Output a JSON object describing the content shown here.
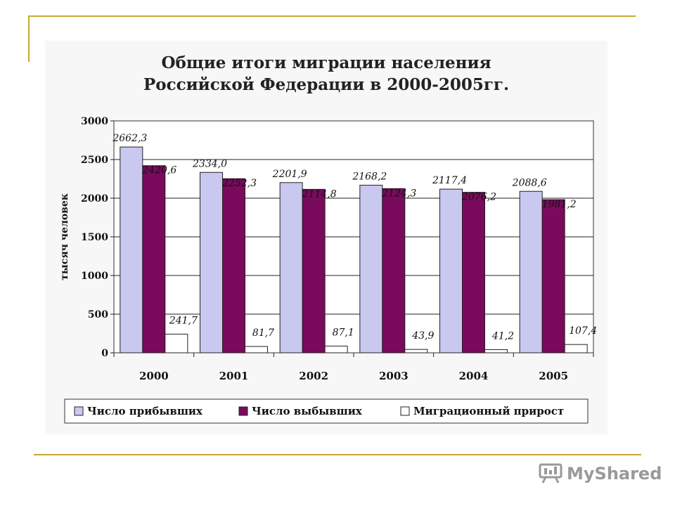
{
  "slide": {
    "title_line1": "Общие итоги миграции населения",
    "title_line2": "Российской Федерации в 2000-2005гг.",
    "watermark": "MyShared"
  },
  "chart_data": {
    "type": "bar",
    "title": "Общие итоги миграции населения Российской Федерации в 2000-2005гг.",
    "ylabel": "тысяч человек",
    "xlabel": "",
    "ylim": [
      0,
      3000
    ],
    "yticks": [
      "0",
      "500",
      "1000",
      "1500",
      "2000",
      "2500",
      "3000"
    ],
    "categories": [
      "2000",
      "2001",
      "2002",
      "2003",
      "2004",
      "2005"
    ],
    "grid": true,
    "legend_position": "bottom",
    "series": [
      {
        "name": "Число прибывших",
        "color": "#c8c8f0",
        "values": [
          2662.3,
          2334.0,
          2201.9,
          2168.2,
          2117.4,
          2088.6
        ],
        "labels": [
          "2662,3",
          "2334,0",
          "2201,9",
          "2168,2",
          "2117,4",
          "2088,6"
        ]
      },
      {
        "name": "Число выбывших",
        "color": "#7a0a5c",
        "values": [
          2420.6,
          2252.3,
          2114.8,
          2124.3,
          2076.2,
          1981.2
        ],
        "labels": [
          "2420,6",
          "2252,3",
          "2114,8",
          "2124,3",
          "2076,2",
          "1981,2"
        ]
      },
      {
        "name": "Миграционный прирост",
        "color": "#ffffff",
        "values": [
          241.7,
          81.7,
          87.1,
          43.9,
          41.2,
          107.4
        ],
        "labels": [
          "241,7",
          "81,7",
          "87,1",
          "43,9",
          "41,2",
          "107,4"
        ]
      }
    ]
  }
}
